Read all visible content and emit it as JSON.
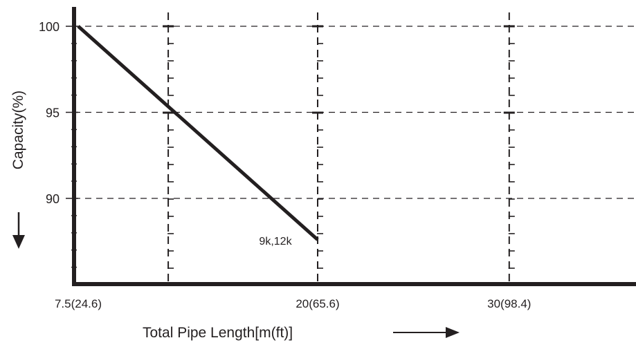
{
  "chart_data": {
    "type": "line",
    "xlabel": "Total Pipe Length[m(ft)]",
    "ylabel": "Capacity(%)",
    "x_ticks": [
      {
        "value": 7.5,
        "label": "7.5(24.6)"
      },
      {
        "value": 20,
        "label": "20(65.6)"
      },
      {
        "value": 30,
        "label": "30(98.4)"
      }
    ],
    "y_ticks": [
      {
        "value": 90,
        "label": "90"
      },
      {
        "value": 95,
        "label": "95"
      },
      {
        "value": 100,
        "label": "100"
      }
    ],
    "vertical_dashed_lines_at_x": [
      12.2,
      20,
      30
    ],
    "ylim": [
      85,
      101.2
    ],
    "grid": "dashed horizontal lines at y = 90, 95, 100",
    "series": [
      {
        "name": "9k,12k",
        "x": [
          7.5,
          20
        ],
        "y": [
          100,
          87.6
        ]
      }
    ],
    "annotations": [
      {
        "text": "9k,12k",
        "x": 17.5,
        "y": 87.3
      }
    ],
    "colors": {
      "line": "#231f20",
      "axis": "#231f20",
      "grid": "#231f20"
    }
  }
}
